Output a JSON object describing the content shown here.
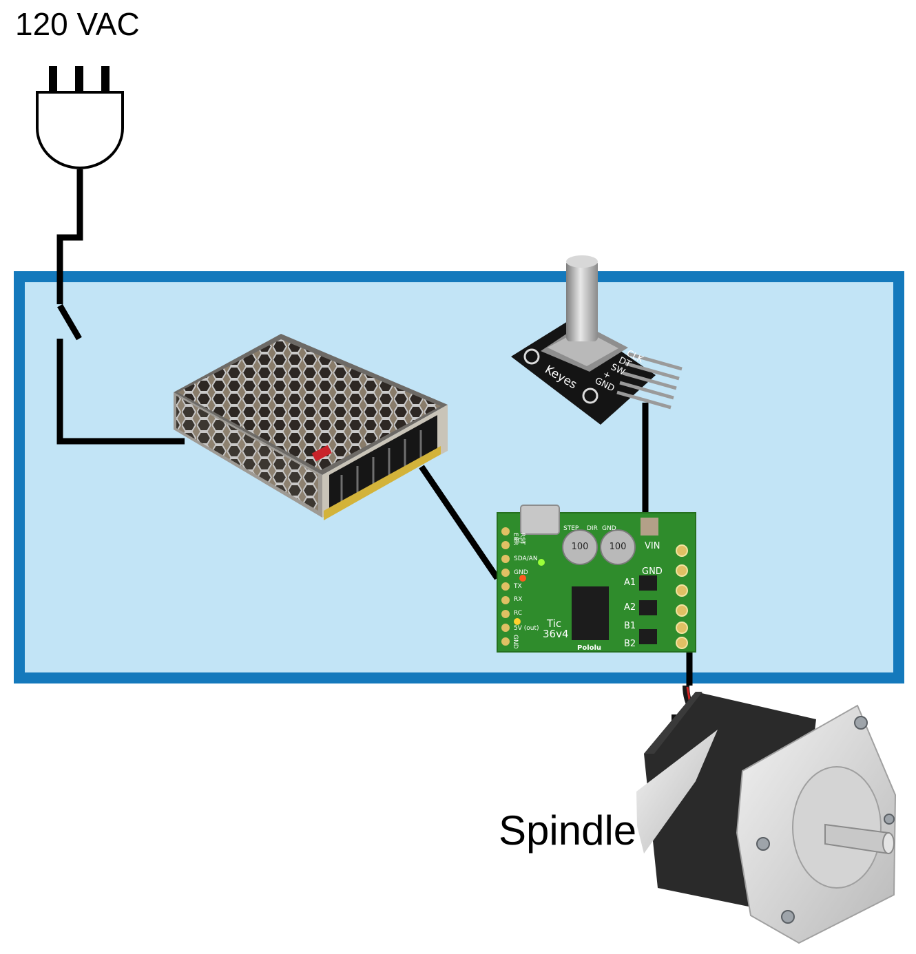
{
  "labels": {
    "power_source": "120 VAC",
    "motor": "Spindle"
  },
  "encoder": {
    "pins": [
      "CLK",
      "DT",
      "SW",
      "+",
      "GND"
    ],
    "brand": "Keyes"
  },
  "driver": {
    "name": "Tic",
    "model": "36v4",
    "brand": "Pololu",
    "capacitor_text": "100",
    "left_pins": [
      "ERR",
      "RST",
      "SCL",
      "SDA/AN",
      "GND",
      "TX",
      "RX",
      "RC",
      "5V (out)",
      "GND"
    ],
    "top_pins": [
      "STEP",
      "DIR",
      "GND"
    ],
    "right_pins": [
      "VIN",
      "GND",
      "A1",
      "A2",
      "B1",
      "B2"
    ]
  },
  "colors": {
    "enclosure_fill": "#c2e4f6",
    "enclosure_border": "#1479bc",
    "wire": "#000000",
    "pcb_green": "#2f8c2c"
  }
}
